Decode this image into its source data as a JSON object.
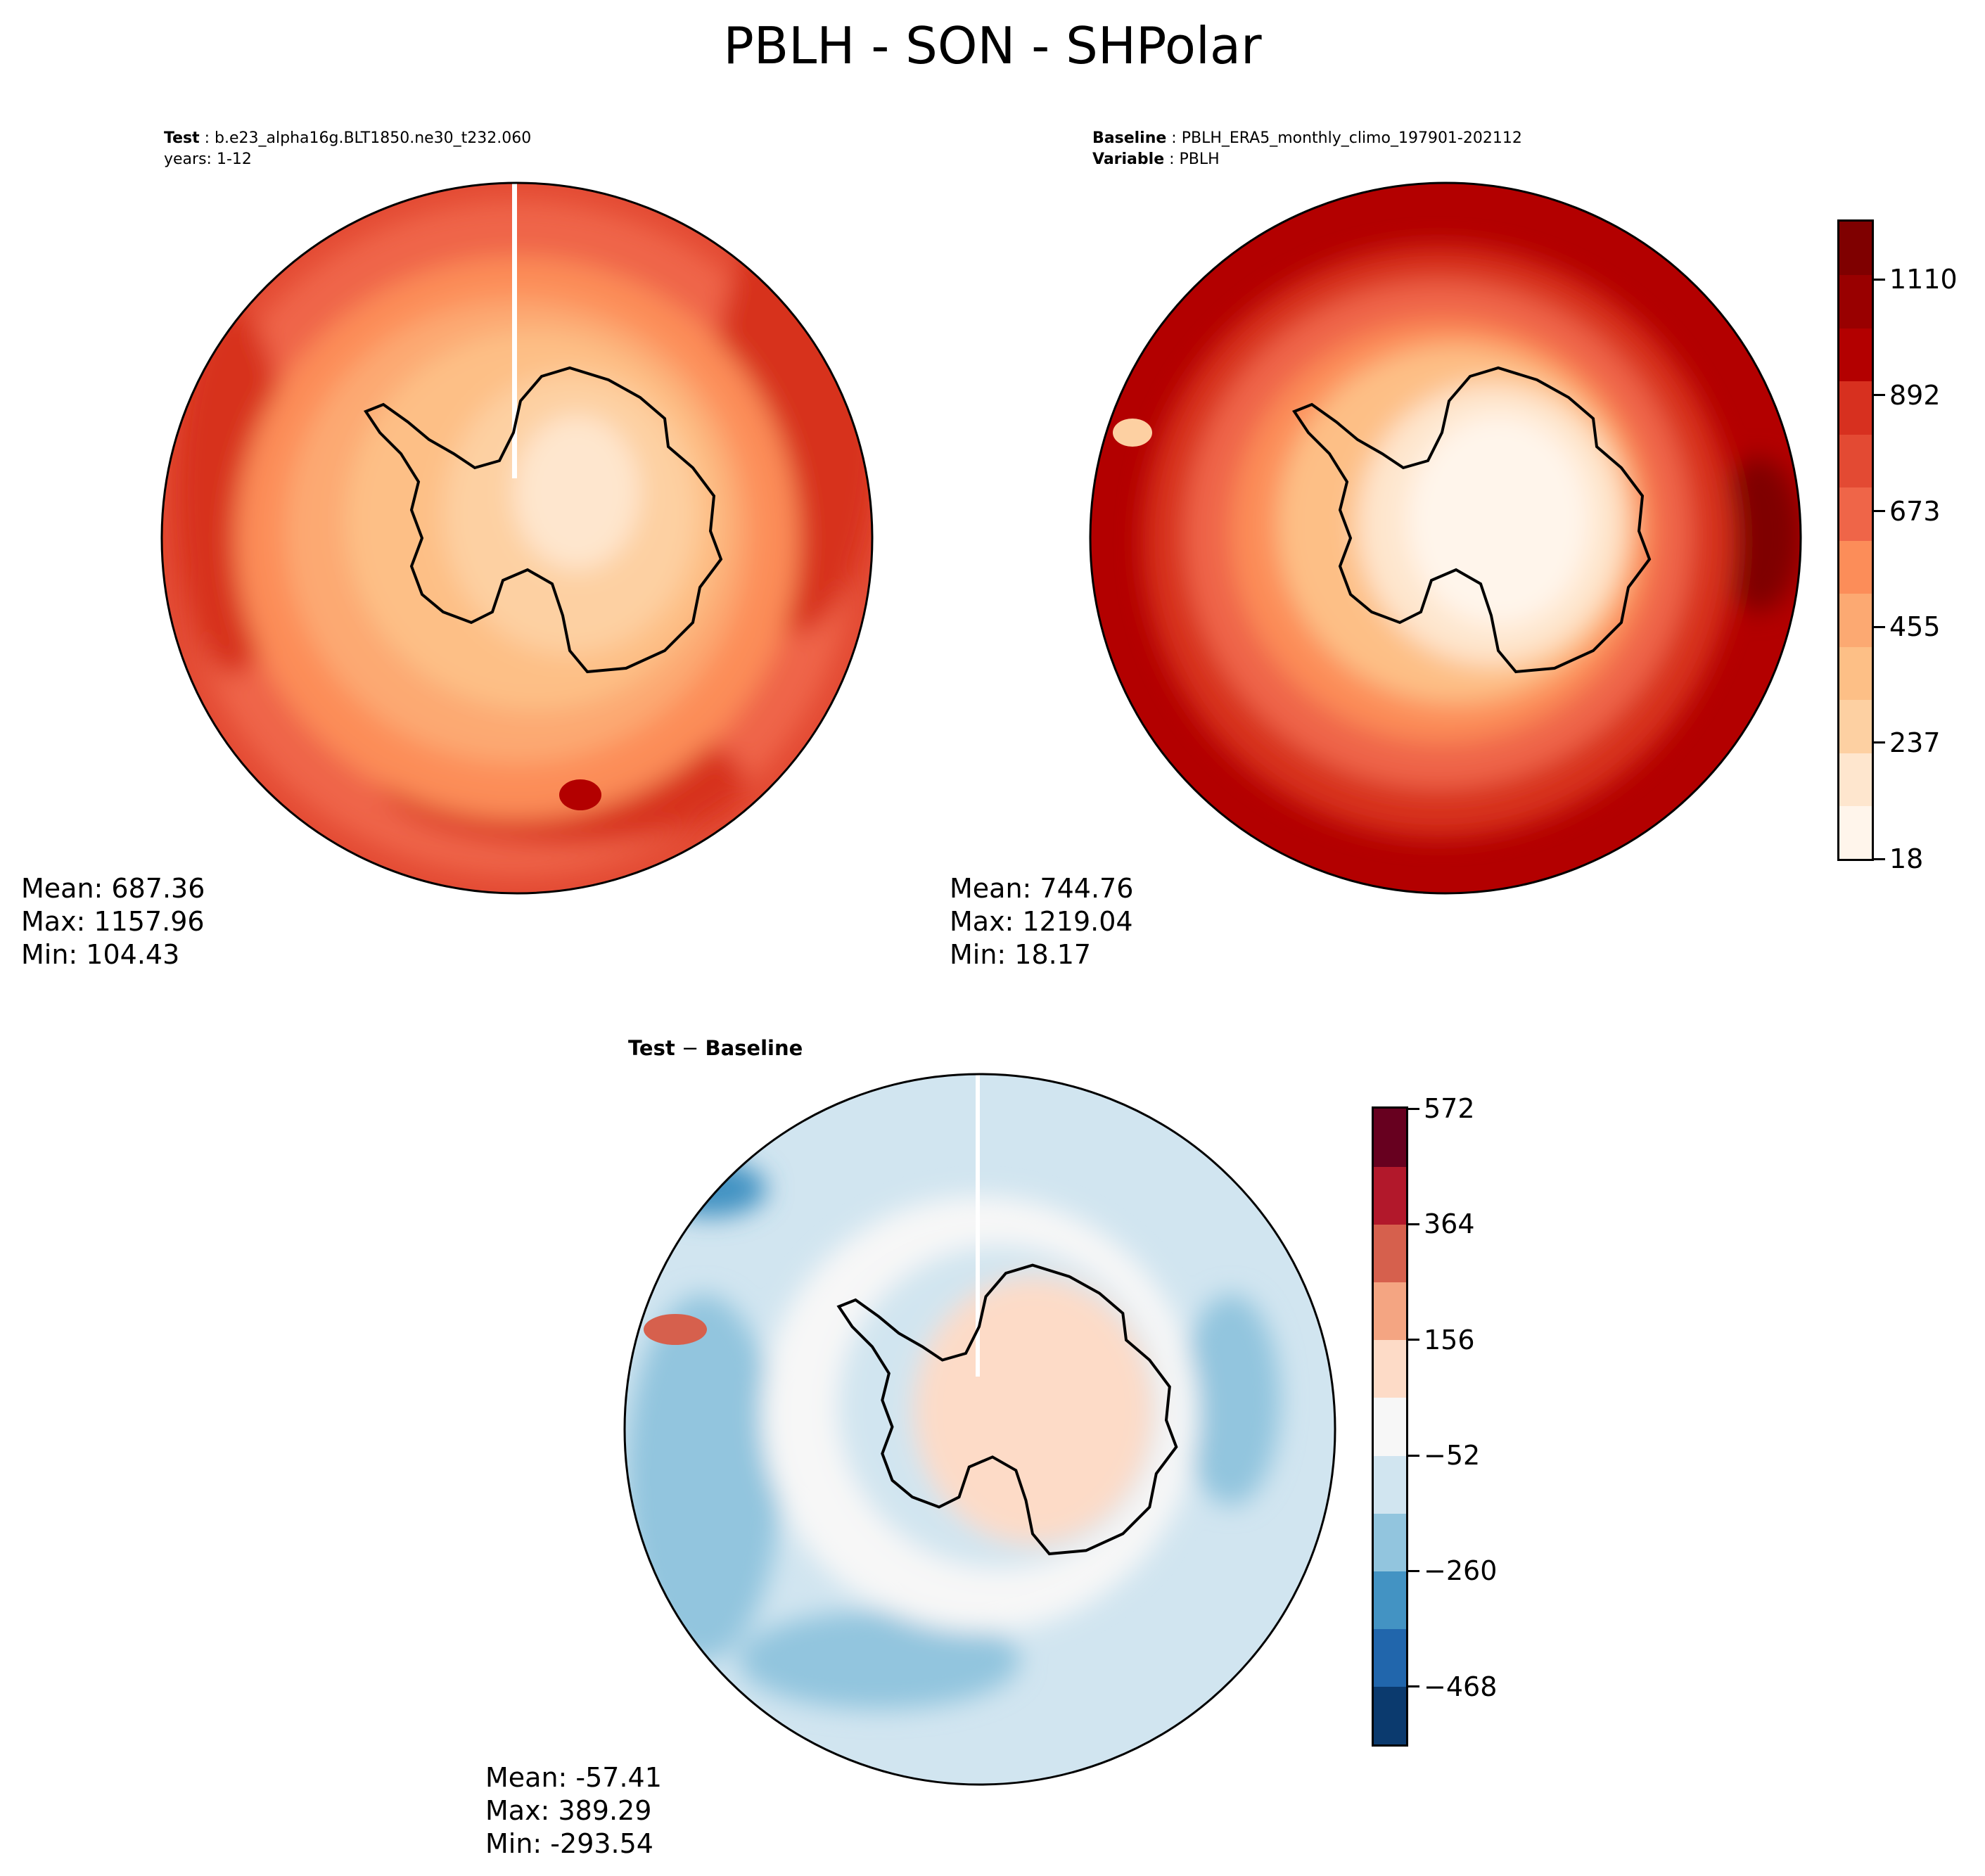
{
  "figure": {
    "title": "PBLH - SON - SHPolar"
  },
  "panels": {
    "test": {
      "label": "Test",
      "case": "b.e23_alpha16g.BLT1850.ne30_t232.060",
      "years": "years: 1-12",
      "stats": {
        "mean": "Mean: 687.36",
        "max": "Max: 1157.96",
        "min": "Min: 104.43"
      }
    },
    "baseline": {
      "label": "Baseline",
      "case": "PBLH_ERA5_monthly_climo_197901-202112",
      "variable_label": "Variable",
      "variable": "PBLH",
      "stats": {
        "mean": "Mean: 744.76",
        "max": "Max: 1219.04",
        "min": "Min: 18.17"
      }
    },
    "diff": {
      "title_left": "Test",
      "title_sep": " − ",
      "title_right": "Baseline",
      "stats": {
        "mean": "Mean: -57.41",
        "max": "Max: 389.29",
        "min": "Min: -293.54"
      }
    }
  },
  "chart_data": [
    {
      "type": "heatmap",
      "projection": "south-polar-stereographic",
      "panel": "Test",
      "colormap": "OrRd-like (Reds)",
      "levels": [
        18,
        237,
        455,
        673,
        892,
        1110
      ],
      "colorbar_shared_with": "Baseline",
      "mean": 687.36,
      "max": 1157.96,
      "min": 104.43
    },
    {
      "type": "heatmap",
      "projection": "south-polar-stereographic",
      "panel": "Baseline",
      "colormap": "OrRd-like (Reds)",
      "levels": [
        18,
        237,
        455,
        673,
        892,
        1110
      ],
      "mean": 744.76,
      "max": 1219.04,
      "min": 18.17
    },
    {
      "type": "heatmap",
      "projection": "south-polar-stereographic",
      "panel": "Test − Baseline",
      "colormap": "RdBu_r",
      "levels": [
        -468,
        -260,
        -52,
        156,
        364,
        572
      ],
      "mean": -57.41,
      "max": 389.29,
      "min": -293.54
    }
  ],
  "colorbars": {
    "top": {
      "colors": [
        "#fff5eb",
        "#fee6ce",
        "#fdd0a2",
        "#fdbf86",
        "#fca972",
        "#fc8d59",
        "#ef6548",
        "#e34a33",
        "#d7301f",
        "#b30000",
        "#990000",
        "#7f0000"
      ],
      "tick_labels": [
        "18",
        "237",
        "455",
        "673",
        "892",
        "1110"
      ],
      "tick_values": [
        18,
        237,
        455,
        673,
        892,
        1110
      ],
      "range": [
        18,
        1219
      ]
    },
    "diff": {
      "colors": [
        "#0b3a6e",
        "#2166ac",
        "#4393c3",
        "#92c5de",
        "#d1e5f0",
        "#f7f7f7",
        "#fddbc7",
        "#f4a582",
        "#d6604d",
        "#b2182b",
        "#67001f"
      ],
      "tick_labels": [
        "−468",
        "−260",
        "−52",
        "156",
        "364",
        "572"
      ],
      "tick_values": [
        -468,
        -260,
        -52,
        156,
        364,
        572
      ],
      "range": [
        -572,
        572
      ]
    }
  }
}
